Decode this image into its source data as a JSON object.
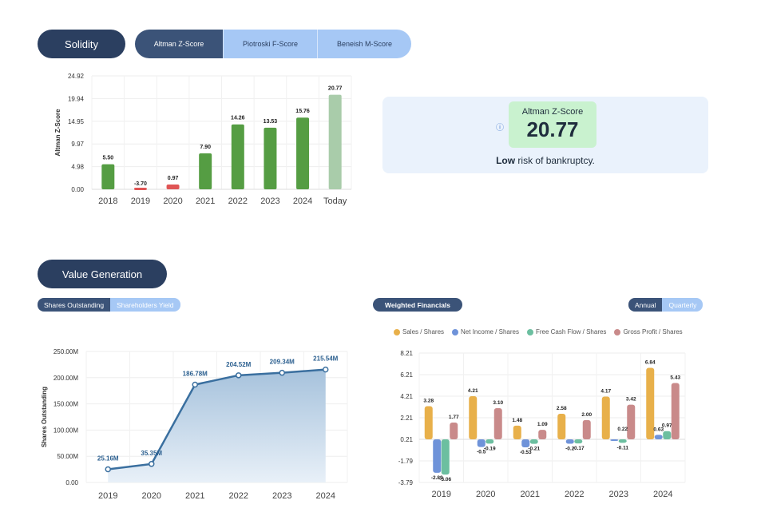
{
  "solidity": {
    "title": "Solidity",
    "tabs": [
      "Altman Z-Score",
      "Piotroski F-Score",
      "Beneish M-Score"
    ],
    "active_tab": 0
  },
  "score_card": {
    "label": "Altman Z-Score",
    "value": "20.77",
    "verdict_bold": "Low",
    "verdict_rest": " risk of bankruptcy.",
    "info_icon": "info-icon"
  },
  "value_generation": {
    "title": "Value Generation",
    "tabs": [
      "Shares Outstanding",
      "Shareholders Yield"
    ],
    "weighted_title": "Weighted Financials",
    "period_tabs": [
      "Annual",
      "Quarterly"
    ]
  },
  "colors": {
    "green": "#559d43",
    "light_green": "#a9ccaa",
    "red": "#e05555",
    "navy": "#2b3f60",
    "blue_line": "#3a6f9f"
  },
  "chart_data": [
    {
      "type": "bar",
      "ylabel": "Altman Z-Score",
      "categories": [
        "2018",
        "2019",
        "2020",
        "2021",
        "2022",
        "2023",
        "2024",
        "Today"
      ],
      "values": [
        5.5,
        -3.7,
        0.97,
        7.9,
        14.26,
        13.53,
        15.76,
        20.77
      ],
      "value_labels": [
        "5.50",
        "-3.70",
        "0.97",
        "7.90",
        "14.26",
        "13.53",
        "15.76",
        "20.77"
      ],
      "y_ticks": [
        "0.00",
        "4.98",
        "9.97",
        "14.95",
        "19.94",
        "24.92"
      ],
      "ylim": [
        0,
        24.92
      ]
    },
    {
      "type": "area",
      "ylabel": "Shares Outstanding",
      "categories": [
        "2019",
        "2020",
        "2021",
        "2022",
        "2023",
        "2024"
      ],
      "values": [
        25.16,
        35.35,
        186.78,
        204.52,
        209.34,
        215.54
      ],
      "value_labels": [
        "25.16M",
        "35.35M",
        "186.78M",
        "204.52M",
        "209.34M",
        "215.54M"
      ],
      "y_ticks": [
        "0.00",
        "50.00M",
        "100.00M",
        "150.00M",
        "200.00M",
        "250.00M"
      ],
      "ylim": [
        0,
        250
      ]
    },
    {
      "type": "bar",
      "categories": [
        "2019",
        "2020",
        "2021",
        "2022",
        "2023",
        "2024"
      ],
      "y_ticks": [
        "-3.79",
        "-1.79",
        "0.21",
        "2.21",
        "4.21",
        "6.21",
        "8.21"
      ],
      "ylim": [
        -3.79,
        8.21
      ],
      "series": [
        {
          "name": "Sales / Shares",
          "color": "#e8b04a",
          "values": [
            3.28,
            4.21,
            1.48,
            2.58,
            4.17,
            6.84
          ],
          "labels": [
            "3.28",
            "4.21",
            "1.48",
            "2.58",
            "4.17",
            "6.84"
          ]
        },
        {
          "name": "Net Income / Shares",
          "color": "#6f93d9",
          "values": [
            -2.89,
            -0.5,
            -0.53,
            -0.2,
            0.1,
            0.63
          ],
          "labels": [
            "-2.89",
            "-0.5",
            "-0.53",
            "-0.2",
            "",
            "0.63"
          ]
        },
        {
          "name": "Free Cash Flow / Shares",
          "color": "#6cbfa0",
          "values": [
            -3.06,
            -0.19,
            -0.21,
            -0.17,
            -0.11,
            0.97
          ],
          "labels": [
            "-3.06",
            "-0.19",
            "-0.21",
            "-0.17",
            "-0.11",
            "0.97"
          ]
        },
        {
          "name": "Gross Profit / Shares",
          "color": "#c98a8a",
          "values": [
            1.77,
            3.1,
            1.09,
            2.0,
            3.42,
            5.43
          ],
          "labels": [
            "1.77",
            "3.10",
            "1.09",
            "2.00",
            "3.42",
            "5.43"
          ]
        }
      ],
      "extra_labels": [
        {
          "category": "2023",
          "text": "0.22"
        }
      ]
    }
  ]
}
